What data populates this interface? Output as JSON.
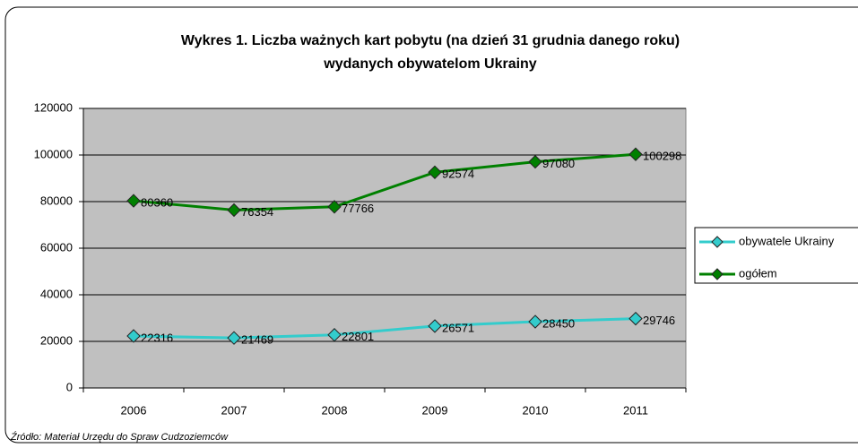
{
  "chart_data": {
    "type": "line",
    "title": [
      "Wykres 1. Liczba ważnych kart pobytu (na dzień 31 grudnia danego roku)",
      "wydanych obywatelom Ukrainy"
    ],
    "categories": [
      "2006",
      "2007",
      "2008",
      "2009",
      "2010",
      "2011"
    ],
    "series": [
      {
        "name": "obywatele Ukrainy",
        "color": "#33cccc",
        "values": [
          22316,
          21469,
          22801,
          26571,
          28450,
          29746
        ]
      },
      {
        "name": "ogółem",
        "color": "#008000",
        "values": [
          80360,
          76354,
          77766,
          92574,
          97080,
          100298
        ]
      }
    ],
    "ylim": [
      0,
      120000
    ],
    "yticks": [
      0,
      20000,
      40000,
      60000,
      80000,
      100000,
      120000
    ],
    "grid": true,
    "legend": "right",
    "source": "Źródło: Materiał Urzędu do Spraw Cudzoziemców"
  }
}
